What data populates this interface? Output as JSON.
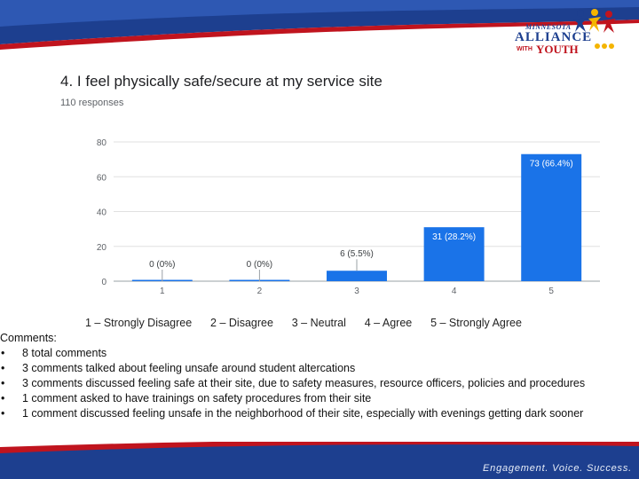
{
  "brand": {
    "logo_line1": "MINNESOTA",
    "logo_line2": "ALLIANCE",
    "logo_line3a": "WITH",
    "logo_line3b": "YOUTH",
    "footer_tagline": "Engagement. Voice. Success.",
    "colors": {
      "navy": "#1d3f8f",
      "red": "#c0141e",
      "gold": "#f4b400",
      "bar": "#1a73e8"
    }
  },
  "chart_data": {
    "type": "bar",
    "title": "4. I feel physically safe/secure at my service site",
    "subtitle": "110 responses",
    "categories": [
      "1",
      "2",
      "3",
      "4",
      "5"
    ],
    "values": [
      0,
      0,
      6,
      31,
      73
    ],
    "data_labels": [
      "0 (0%)",
      "0 (0%)",
      "6 (5.5%)",
      "31 (28.2%)",
      "73 (66.4%)"
    ],
    "yticks": [
      "0",
      "20",
      "40",
      "60",
      "80"
    ],
    "ylim": [
      0,
      80
    ],
    "xlabel": "",
    "ylabel": "",
    "grid": true,
    "legend_text": "1 – Strongly Disagree      2 – Disagree      3 – Neutral      4 – Agree      5 – Strongly Agree"
  },
  "comments": {
    "heading": "Comments:",
    "bullet": "•",
    "items": [
      "8 total comments",
      "3 comments talked about feeling unsafe around student altercations",
      "3 comments discussed feeling safe at their site, due to safety measures, resource officers, policies and procedures",
      "1 comment asked to have trainings on safety procedures from their site",
      "1 comment discussed feeling unsafe in the neighborhood of their site, especially with evenings getting dark sooner"
    ]
  }
}
